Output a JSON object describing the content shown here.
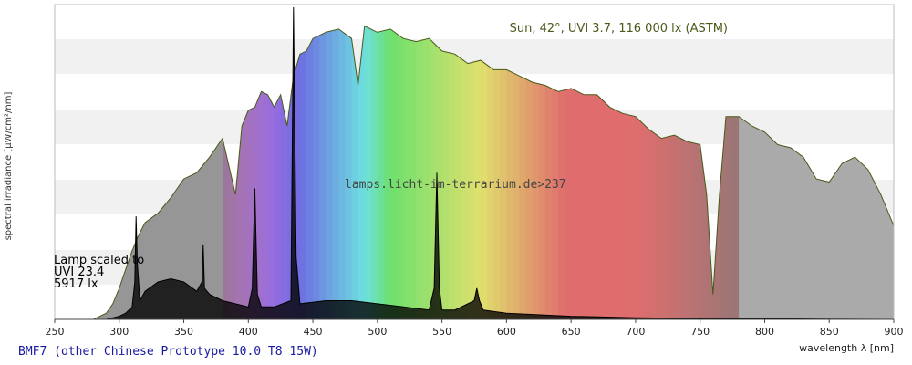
{
  "chart_data": {
    "type": "area",
    "xlabel": "wavelength λ [nm]",
    "ylabel": "spectral irradiance [µW/cm²/nm]",
    "x_ticks": [
      250,
      300,
      350,
      400,
      450,
      500,
      550,
      600,
      650,
      700,
      750,
      800,
      850,
      900
    ],
    "xlim": [
      250,
      900
    ],
    "ylim": [
      0,
      1
    ],
    "y_scale": "relative (no numeric ticks shown)",
    "grid": "horizontal bands",
    "annotations": {
      "sun": "Sun, 42°, UVI 3.7, 116 000 lx (ASTM)",
      "lamp_line1": "Lamp scaled to",
      "lamp_line2": "UVI 23.4",
      "lamp_line3": "5917 lx",
      "watermark": "lamps.licht-im-terrarium.de>237"
    },
    "series": [
      {
        "name": "Sun, 42°, UVI 3.7, 116 000 lx (ASTM)",
        "x": [
          280,
          290,
          295,
          300,
          305,
          310,
          315,
          320,
          330,
          340,
          350,
          360,
          370,
          380,
          390,
          395,
          400,
          405,
          410,
          415,
          420,
          425,
          430,
          435,
          440,
          445,
          450,
          455,
          460,
          470,
          480,
          485,
          490,
          500,
          510,
          520,
          530,
          540,
          545,
          550,
          560,
          570,
          580,
          590,
          600,
          610,
          620,
          630,
          640,
          650,
          660,
          670,
          680,
          690,
          700,
          710,
          720,
          730,
          740,
          750,
          755,
          760,
          765,
          770,
          780,
          790,
          800,
          810,
          820,
          830,
          840,
          850,
          860,
          870,
          880,
          890,
          900
        ],
        "y": [
          0.0,
          0.02,
          0.05,
          0.1,
          0.16,
          0.22,
          0.27,
          0.31,
          0.34,
          0.39,
          0.45,
          0.47,
          0.52,
          0.58,
          0.4,
          0.62,
          0.67,
          0.68,
          0.73,
          0.72,
          0.68,
          0.72,
          0.62,
          0.78,
          0.85,
          0.86,
          0.9,
          0.91,
          0.92,
          0.93,
          0.9,
          0.75,
          0.94,
          0.92,
          0.93,
          0.9,
          0.89,
          0.9,
          0.88,
          0.86,
          0.85,
          0.82,
          0.83,
          0.8,
          0.8,
          0.78,
          0.76,
          0.75,
          0.73,
          0.74,
          0.72,
          0.72,
          0.68,
          0.66,
          0.65,
          0.61,
          0.58,
          0.59,
          0.57,
          0.56,
          0.4,
          0.08,
          0.4,
          0.65,
          0.65,
          0.62,
          0.6,
          0.56,
          0.55,
          0.52,
          0.45,
          0.44,
          0.5,
          0.52,
          0.48,
          0.4,
          0.3
        ]
      },
      {
        "name": "BMF7 (other Chinese Prototype 10.0 T8 15W)",
        "x": [
          290,
          300,
          305,
          310,
          312,
          313,
          314,
          316,
          320,
          330,
          340,
          350,
          360,
          364,
          365,
          366,
          370,
          380,
          400,
          403,
          405,
          407,
          410,
          420,
          433,
          435,
          437,
          440,
          460,
          480,
          500,
          520,
          540,
          544,
          546,
          548,
          550,
          560,
          575,
          577,
          579,
          582,
          600,
          650,
          700,
          750,
          800,
          850,
          900
        ],
        "y": [
          0.0,
          0.01,
          0.02,
          0.04,
          0.12,
          0.33,
          0.18,
          0.06,
          0.09,
          0.12,
          0.13,
          0.12,
          0.09,
          0.12,
          0.24,
          0.1,
          0.08,
          0.06,
          0.04,
          0.1,
          0.42,
          0.08,
          0.04,
          0.04,
          0.06,
          1.0,
          0.2,
          0.05,
          0.06,
          0.06,
          0.05,
          0.04,
          0.03,
          0.1,
          0.47,
          0.1,
          0.03,
          0.03,
          0.06,
          0.1,
          0.06,
          0.03,
          0.02,
          0.01,
          0.005,
          0.003,
          0.002,
          0.001,
          0.0
        ]
      }
    ]
  },
  "footer": {
    "title": "BMF7 (other Chinese Prototype 10.0 T8 15W)"
  }
}
